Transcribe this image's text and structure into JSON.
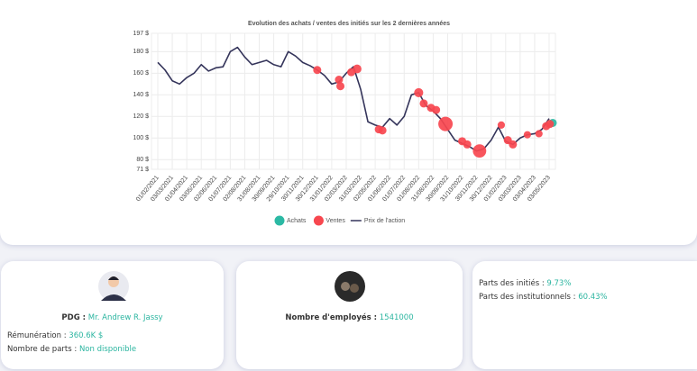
{
  "chart_data": {
    "type": "line",
    "title": "Evolution des achats / ventes des initiés sur les 2 dernières années",
    "categories": [
      "01/02/2021",
      null,
      "03/03/2021",
      null,
      "01/04/2021",
      null,
      "03/05/2021",
      null,
      "02/06/2021",
      null,
      "01/07/2021",
      null,
      "02/08/2021",
      null,
      "31/08/2021",
      null,
      "30/09/2021",
      null,
      "29/10/2021",
      null,
      "30/11/2021",
      null,
      "30/12/2021",
      null,
      "31/01/2022",
      null,
      "02/03/2022",
      null,
      "31/03/2022",
      null,
      "02/05/2022",
      null,
      "01/06/2022",
      null,
      "01/07/2022",
      null,
      "01/08/2022",
      null,
      "31/08/2022",
      null,
      "30/09/2022",
      null,
      "31/10/2022",
      null,
      "30/11/2022",
      null,
      "30/12/2022",
      null,
      "01/02/2023",
      null,
      "03/03/2023",
      null,
      "03/04/2023",
      null,
      "03/05/2023"
    ],
    "series": [
      {
        "name": "Prix de l'action",
        "color": "#34345a",
        "values": [
          170,
          163,
          153,
          150,
          156,
          160,
          168,
          162,
          165,
          166,
          180,
          184,
          175,
          168,
          170,
          172,
          168,
          166,
          180,
          176,
          170,
          167,
          163,
          158,
          150,
          152,
          160,
          166,
          145,
          115,
          112,
          110,
          118,
          112,
          120,
          140,
          142,
          130,
          125,
          118,
          108,
          98,
          95,
          92,
          88,
          90,
          98,
          110,
          97,
          94,
          100,
          103,
          104,
          108,
          118
        ]
      }
    ],
    "bubbles": [
      {
        "name": "Achats",
        "color": "#2bb9a4",
        "x": [
          54.5
        ],
        "values": [
          114
        ],
        "sizes": [
          1
        ]
      },
      {
        "name": "Ventes",
        "color": "#f7474f",
        "x": [
          22,
          25,
          25.2,
          26.7,
          27.5,
          30.5,
          31,
          36,
          36.7,
          37.7,
          38.4,
          39.7,
          42,
          42.7,
          44.4,
          47.4,
          48.3,
          49,
          51,
          52.6,
          53.6,
          54.1
        ],
        "values": [
          163,
          154,
          148,
          161,
          164,
          108,
          107,
          142,
          132,
          128,
          126,
          113,
          97,
          94,
          88,
          112,
          98,
          94,
          103,
          104,
          111,
          113
        ],
        "sizes": [
          1,
          1,
          1,
          1,
          1.2,
          1,
          1,
          1.3,
          1,
          1,
          1,
          3.5,
          1,
          1,
          3,
          0.8,
          1,
          1,
          0.8,
          0.8,
          1,
          1
        ]
      }
    ],
    "ylim": [
      71,
      197
    ],
    "yticks": [
      {
        "value": 71,
        "label": "71 $"
      },
      {
        "value": 80,
        "label": "80 $"
      },
      {
        "value": 100,
        "label": "100 $"
      },
      {
        "value": 120,
        "label": "120 $"
      },
      {
        "value": 140,
        "label": "140 $"
      },
      {
        "value": 160,
        "label": "160 $"
      },
      {
        "value": 180,
        "label": "180 $"
      },
      {
        "value": 197,
        "label": "197 $"
      }
    ],
    "grid": true
  },
  "cards": [
    {
      "ceo_label": "PDG :",
      "ceo_value": "Mr. Andrew R. Jassy",
      "pay_label": "Rémunération :",
      "pay_value": "360.6K $",
      "shares_label": "Nombre de parts :",
      "shares_value": "Non disponible"
    },
    {
      "employees_label": "Nombre d'employés :",
      "employees_value": "1541000"
    },
    {
      "insiders_label": "Parts des initiés :",
      "insiders_value": "9.73%",
      "institutions_label": "Parts des institutionnels :",
      "institutions_value": "60.43%"
    }
  ]
}
